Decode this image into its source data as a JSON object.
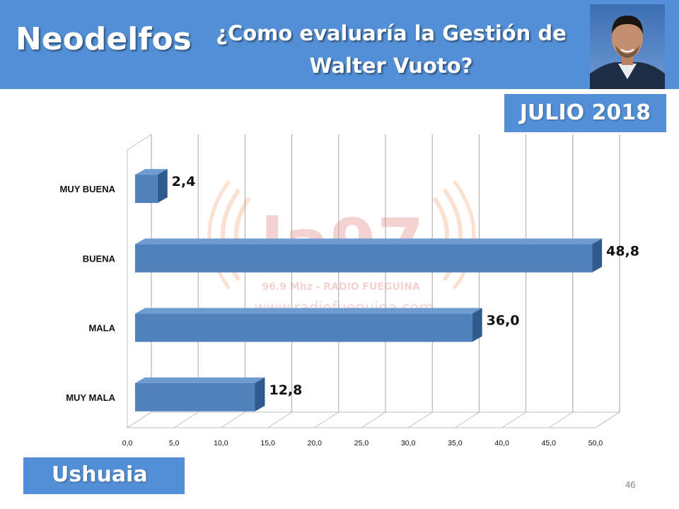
{
  "header": {
    "brand": "Neodelfos",
    "question_line1": "¿Como evaluaría la Gestión de",
    "question_line2": "Walter Vuoto?",
    "date_badge": "JULIO 2018"
  },
  "footer": {
    "location": "Ushuaia",
    "page_number": "46"
  },
  "watermark": {
    "logo": "la97",
    "station": "96.9 Mhz - RADIO FUEGUINA",
    "url": "www.radiofueguina.com"
  },
  "colors": {
    "banner": "#538fd6",
    "bar_front": "#4f81bd",
    "bar_top": "#6f9bd1",
    "bar_side": "#2e5a8c"
  },
  "chart_data": {
    "type": "bar",
    "orientation": "horizontal",
    "style": "3d",
    "categories": [
      "MUY BUENA",
      "BUENA",
      "MALA",
      "MUY MALA"
    ],
    "values": [
      2.4,
      48.8,
      36.0,
      12.8
    ],
    "value_labels": [
      "2,4",
      "48,8",
      "36,0",
      "12,8"
    ],
    "x_ticks": [
      "0,0",
      "5,0",
      "10,0",
      "15,0",
      "20,0",
      "25,0",
      "30,0",
      "35,0",
      "40,0",
      "45,0",
      "50,0"
    ],
    "xlim": [
      0,
      50
    ],
    "grid": true,
    "legend": "none"
  }
}
